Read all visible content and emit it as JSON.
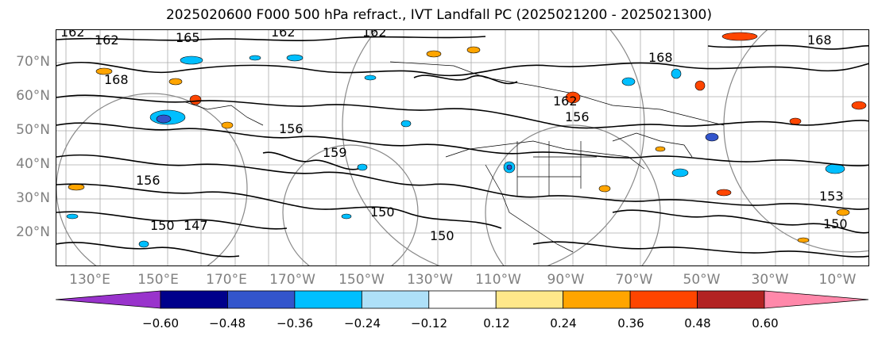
{
  "title": "2025020600 F000 500 hPa refract., IVT Landfall PC (2025021200 - 2025021300)",
  "lat_labels": [
    "70°N",
    "60°N",
    "50°N",
    "40°N",
    "30°N",
    "20°N"
  ],
  "lon_labels": [
    "130°E",
    "150°E",
    "170°E",
    "170°W",
    "150°W",
    "130°W",
    "110°W",
    "90°W",
    "70°W",
    "50°W",
    "30°W",
    "10°W"
  ],
  "colorbar": {
    "ticks": [
      "−0.60",
      "−0.48",
      "−0.36",
      "−0.24",
      "−0.12",
      "0.12",
      "0.24",
      "0.36",
      "0.48",
      "0.60"
    ],
    "colors": [
      "#9933cc",
      "#00008b",
      "#3355cc",
      "#00bfff",
      "#aee0f8",
      "#ffffff",
      "#ffe88a",
      "#ffa500",
      "#ff4500",
      "#b22222",
      "#ff88aa"
    ]
  },
  "contour_labels": [
    {
      "text": "162"
    },
    {
      "text": "162"
    },
    {
      "text": "165"
    },
    {
      "text": "162"
    },
    {
      "text": "162"
    },
    {
      "text": "168"
    },
    {
      "text": "168"
    },
    {
      "text": "168"
    },
    {
      "text": "156"
    },
    {
      "text": "156"
    },
    {
      "text": "159"
    },
    {
      "text": "156"
    },
    {
      "text": "150"
    },
    {
      "text": "147"
    },
    {
      "text": "150"
    },
    {
      "text": "150"
    },
    {
      "text": "153"
    },
    {
      "text": "150"
    },
    {
      "text": "162"
    }
  ]
}
